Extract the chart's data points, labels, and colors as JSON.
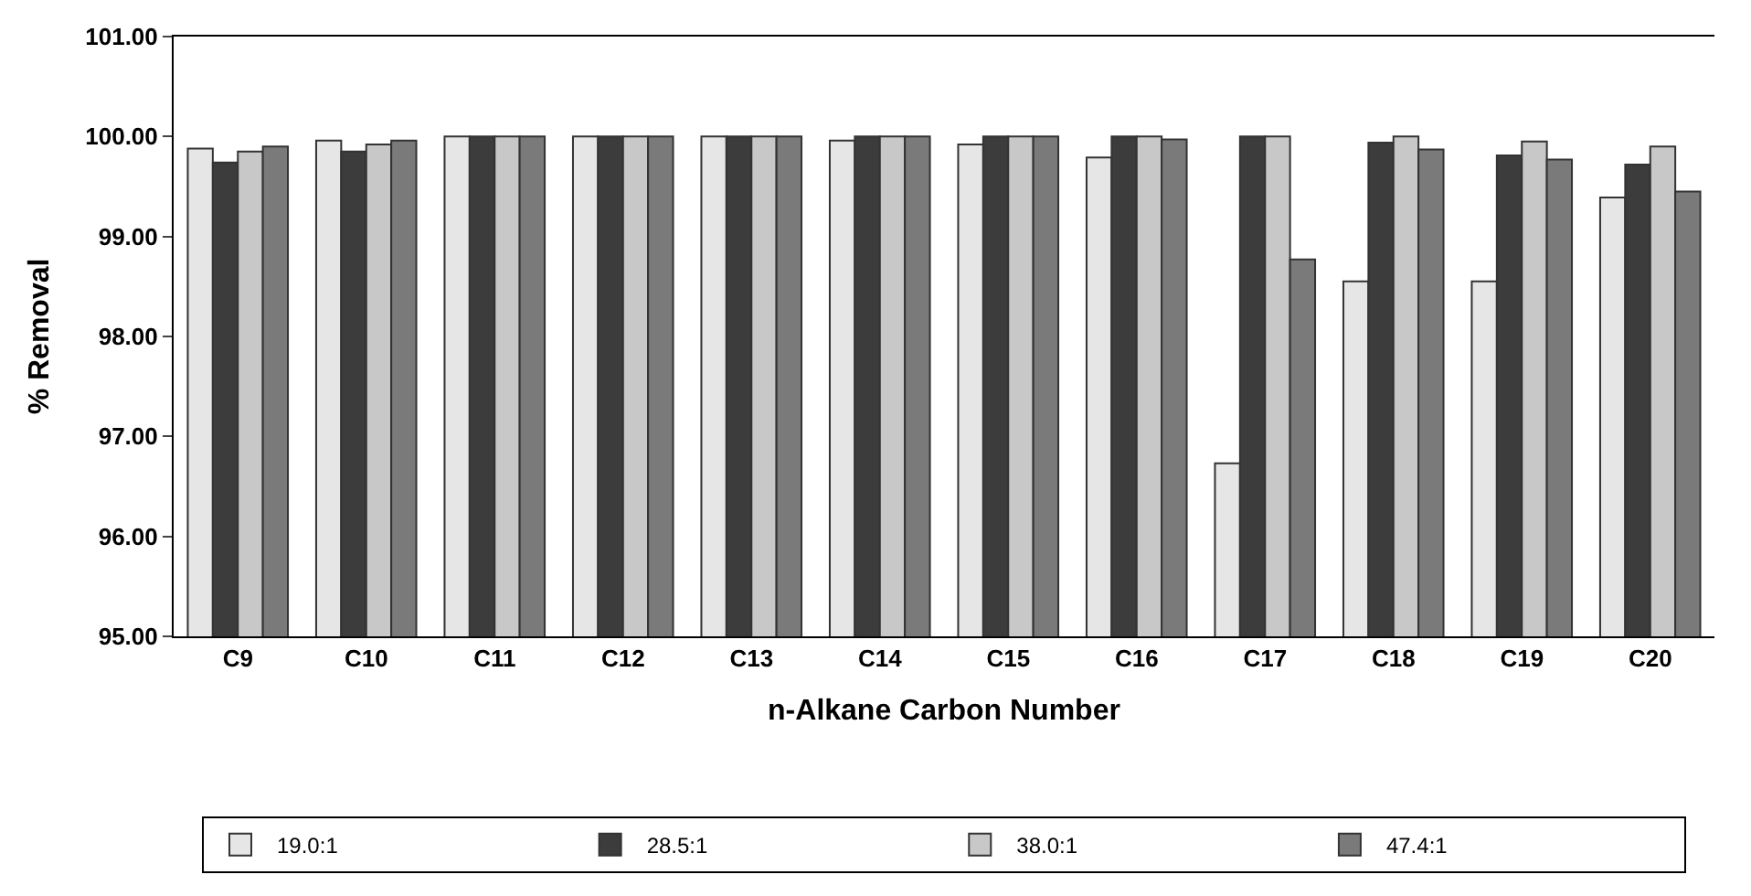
{
  "chart_data": {
    "type": "bar",
    "xlabel": "n-Alkane Carbon Number",
    "ylabel": "% Removal",
    "categories": [
      "C9",
      "C10",
      "C11",
      "C12",
      "C13",
      "C14",
      "C15",
      "C16",
      "C17",
      "C18",
      "C19",
      "C20"
    ],
    "series": [
      {
        "name": "19.0:1",
        "color": "#e6e6e6",
        "values": [
          99.88,
          99.96,
          100,
          100,
          100,
          99.96,
          99.92,
          99.79,
          96.73,
          98.55,
          98.55,
          99.39
        ]
      },
      {
        "name": "28.5:1",
        "color": "#3c3c3c",
        "values": [
          99.74,
          99.85,
          100,
          100,
          100,
          100,
          100,
          100,
          100,
          99.94,
          99.81,
          99.72
        ]
      },
      {
        "name": "38.0:1",
        "color": "#c8c8c8",
        "values": [
          99.85,
          99.92,
          100,
          100,
          100,
          100,
          100,
          100,
          100,
          100,
          99.95,
          99.9
        ]
      },
      {
        "name": "47.4:1",
        "color": "#7a7a7a",
        "values": [
          99.9,
          99.96,
          100,
          100,
          100,
          100,
          100,
          99.97,
          98.77,
          99.87,
          99.77,
          99.45
        ]
      }
    ],
    "ylim": [
      95,
      101
    ],
    "yticks": [
      {
        "value": 95,
        "label": "95.00"
      },
      {
        "value": 96,
        "label": "96.00"
      },
      {
        "value": 97,
        "label": "97.00"
      },
      {
        "value": 98,
        "label": "98.00"
      },
      {
        "value": 99,
        "label": "99.00"
      },
      {
        "value": 100,
        "label": "100.00"
      },
      {
        "value": 101,
        "label": "101.00"
      }
    ],
    "grid": false,
    "legend": "bottom"
  }
}
